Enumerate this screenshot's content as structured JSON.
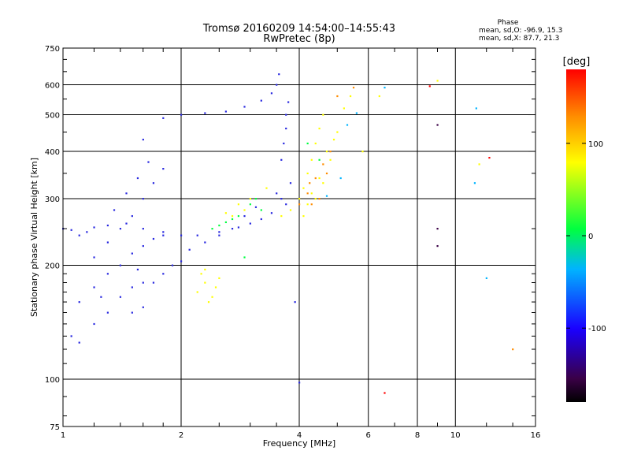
{
  "header": {
    "title_line1": "Tromsø 20160209 14:54:00–14:55:43",
    "title_line2": "RwPretec (8p)",
    "phase_heading": "Phase",
    "phase_o": "mean, sd,O: -96.9, 15.3",
    "phase_x": "mean, sd,X: 87.7, 21.3"
  },
  "chart_data": {
    "type": "scatter",
    "title": "Tromsø 20160209 14:54:00–14:55:43",
    "subtitle": "RwPretec (8p)",
    "xlabel": "Frequency [MHz]",
    "ylabel": "Stationary phase Virtual Height [km]",
    "xscale": "log",
    "yscale": "log",
    "xlim": [
      1,
      16
    ],
    "ylim": [
      75,
      750
    ],
    "grid": true,
    "xticks": [
      1,
      2,
      4,
      6,
      8,
      10,
      16
    ],
    "xtick_labels": [
      "1",
      "2",
      "4",
      "6",
      "8",
      "10",
      "16"
    ],
    "xgrid": [
      2,
      4,
      6,
      8,
      10
    ],
    "yticks": [
      75,
      100,
      200,
      300,
      400,
      500,
      600,
      750
    ],
    "ytick_labels": [
      "75",
      "100",
      "200",
      "300",
      "400",
      "500",
      "600",
      "750"
    ],
    "ygrid": [
      100,
      200,
      300,
      400,
      500,
      600
    ],
    "colorbar": {
      "label": "[deg]",
      "range": [
        -180,
        180
      ],
      "ticks": [
        100,
        0,
        -100
      ],
      "tick_labels": [
        "100",
        "0",
        "-100"
      ],
      "colors": [
        "#000000",
        "#3a0046",
        "#1a00ff",
        "#00b4ff",
        "#00ff40",
        "#ffff00",
        "#ff8c00",
        "#ff0000"
      ]
    },
    "series": [
      {
        "color": "#2a2ae0",
        "points": [
          [
            1.0,
            250
          ],
          [
            1.05,
            248
          ],
          [
            1.1,
            240
          ],
          [
            1.15,
            245
          ],
          [
            1.2,
            252
          ],
          [
            1.3,
            255
          ],
          [
            1.45,
            258
          ],
          [
            1.6,
            250
          ],
          [
            1.8,
            245
          ],
          [
            2.0,
            240
          ],
          [
            2.2,
            240
          ],
          [
            2.5,
            245
          ],
          [
            2.8,
            252
          ],
          [
            3.0,
            258
          ],
          [
            3.2,
            265
          ],
          [
            3.4,
            275
          ],
          [
            1.05,
            130
          ],
          [
            1.1,
            125
          ],
          [
            1.2,
            140
          ],
          [
            1.3,
            150
          ],
          [
            1.4,
            165
          ],
          [
            1.5,
            175
          ],
          [
            1.6,
            180
          ],
          [
            1.1,
            160
          ],
          [
            1.2,
            175
          ],
          [
            1.3,
            190
          ],
          [
            1.4,
            200
          ],
          [
            1.5,
            215
          ],
          [
            1.6,
            225
          ],
          [
            1.7,
            235
          ],
          [
            1.8,
            240
          ],
          [
            1.2,
            210
          ],
          [
            1.3,
            230
          ],
          [
            1.4,
            250
          ],
          [
            1.5,
            270
          ],
          [
            1.6,
            300
          ],
          [
            1.7,
            330
          ],
          [
            1.8,
            360
          ],
          [
            1.35,
            280
          ],
          [
            1.45,
            310
          ],
          [
            1.55,
            340
          ],
          [
            1.65,
            375
          ],
          [
            1.6,
            430
          ],
          [
            1.8,
            490
          ],
          [
            2.0,
            500
          ],
          [
            2.3,
            505
          ],
          [
            2.6,
            510
          ],
          [
            2.9,
            525
          ],
          [
            3.2,
            545
          ],
          [
            3.4,
            570
          ],
          [
            3.5,
            600
          ],
          [
            3.55,
            640
          ],
          [
            3.6,
            380
          ],
          [
            3.65,
            420
          ],
          [
            3.7,
            460
          ],
          [
            3.7,
            500
          ],
          [
            3.75,
            540
          ],
          [
            3.8,
            330
          ],
          [
            3.5,
            310
          ],
          [
            3.6,
            300
          ],
          [
            3.7,
            290
          ],
          [
            2.1,
            220
          ],
          [
            2.3,
            230
          ],
          [
            2.5,
            240
          ],
          [
            2.7,
            250
          ],
          [
            2.9,
            270
          ],
          [
            3.1,
            285
          ],
          [
            1.9,
            200
          ],
          [
            2.0,
            205
          ],
          [
            1.7,
            180
          ],
          [
            1.8,
            190
          ],
          [
            1.5,
            150
          ],
          [
            1.6,
            155
          ],
          [
            3.9,
            160
          ],
          [
            4.0,
            98
          ],
          [
            1.55,
            195
          ],
          [
            1.25,
            165
          ]
        ]
      },
      {
        "color": "#ffff00",
        "points": [
          [
            2.2,
            170
          ],
          [
            2.3,
            180
          ],
          [
            2.4,
            165
          ],
          [
            2.25,
            190
          ],
          [
            2.35,
            160
          ],
          [
            2.45,
            175
          ],
          [
            2.3,
            195
          ],
          [
            2.5,
            185
          ],
          [
            2.6,
            275
          ],
          [
            2.8,
            290
          ],
          [
            3.0,
            300
          ],
          [
            2.7,
            270
          ],
          [
            2.9,
            280
          ],
          [
            3.3,
            320
          ],
          [
            3.6,
            270
          ],
          [
            3.8,
            280
          ],
          [
            4.0,
            300
          ],
          [
            4.1,
            320
          ],
          [
            4.2,
            350
          ],
          [
            4.3,
            380
          ],
          [
            4.4,
            420
          ],
          [
            4.5,
            460
          ],
          [
            4.6,
            500
          ],
          [
            4.2,
            290
          ],
          [
            4.4,
            300
          ],
          [
            4.6,
            330
          ],
          [
            4.8,
            380
          ],
          [
            5.0,
            450
          ],
          [
            5.2,
            520
          ],
          [
            5.4,
            560
          ],
          [
            5.8,
            400
          ],
          [
            4.1,
            270
          ],
          [
            4.3,
            310
          ],
          [
            4.5,
            340
          ],
          [
            4.7,
            400
          ],
          [
            4.9,
            430
          ],
          [
            6.4,
            560
          ],
          [
            9.0,
            615
          ],
          [
            11.5,
            370
          ]
        ]
      },
      {
        "color": "#00ff40",
        "points": [
          [
            2.4,
            250
          ],
          [
            2.6,
            260
          ],
          [
            2.8,
            270
          ],
          [
            3.0,
            290
          ],
          [
            3.1,
            300
          ],
          [
            2.5,
            255
          ],
          [
            2.7,
            265
          ],
          [
            3.2,
            280
          ],
          [
            4.2,
            420
          ],
          [
            4.5,
            380
          ],
          [
            2.9,
            210
          ]
        ]
      },
      {
        "color": "#ff8c00",
        "points": [
          [
            4.0,
            290
          ],
          [
            4.2,
            310
          ],
          [
            4.4,
            340
          ],
          [
            4.6,
            370
          ],
          [
            4.8,
            400
          ],
          [
            4.3,
            290
          ],
          [
            4.5,
            300
          ],
          [
            5.0,
            560
          ],
          [
            5.5,
            590
          ],
          [
            4.25,
            330
          ],
          [
            4.7,
            350
          ],
          [
            14.0,
            120
          ]
        ]
      },
      {
        "color": "#ff0000",
        "points": [
          [
            6.6,
            92
          ],
          [
            8.6,
            595
          ],
          [
            12.2,
            385
          ]
        ]
      },
      {
        "color": "#00b4ff",
        "points": [
          [
            4.7,
            305
          ],
          [
            5.1,
            340
          ],
          [
            5.3,
            470
          ],
          [
            5.6,
            505
          ],
          [
            6.6,
            590
          ],
          [
            11.3,
            520
          ],
          [
            11.2,
            330
          ],
          [
            12.0,
            185
          ]
        ]
      },
      {
        "color": "#3a0046",
        "points": [
          [
            9.0,
            470
          ],
          [
            9.0,
            250
          ],
          [
            9.0,
            225
          ]
        ]
      }
    ]
  }
}
